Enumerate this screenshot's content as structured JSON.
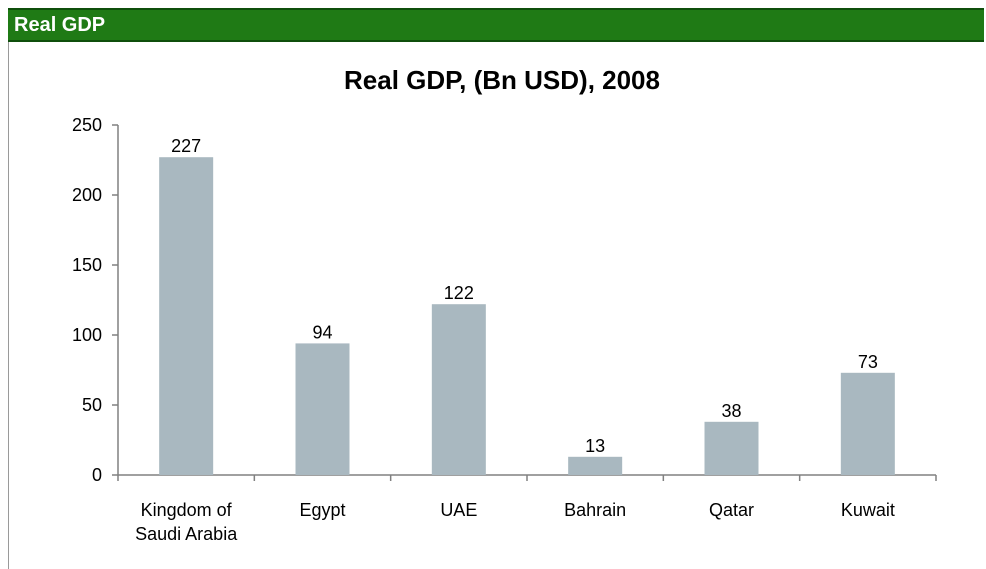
{
  "header": {
    "title": "Real GDP"
  },
  "colors": {
    "header_bg": "#1f7a15",
    "bar_fill": "#a9b8c0",
    "axis": "#808080"
  },
  "chart_data": {
    "type": "bar",
    "title": "Real GDP, (Bn USD), 2008",
    "categories": [
      [
        "Kingdom of",
        "Saudi Arabia"
      ],
      [
        "Egypt"
      ],
      [
        "UAE"
      ],
      [
        "Bahrain"
      ],
      [
        "Qatar"
      ],
      [
        "Kuwait"
      ]
    ],
    "values": [
      227,
      94,
      122,
      13,
      38,
      73
    ],
    "data_labels": [
      "227",
      "94",
      "122",
      "13",
      "38",
      "73"
    ],
    "ylim": [
      0,
      250
    ],
    "yticks": [
      0,
      50,
      100,
      150,
      200,
      250
    ],
    "xlabel": "",
    "ylabel": "",
    "grid": false,
    "legend": "none"
  }
}
